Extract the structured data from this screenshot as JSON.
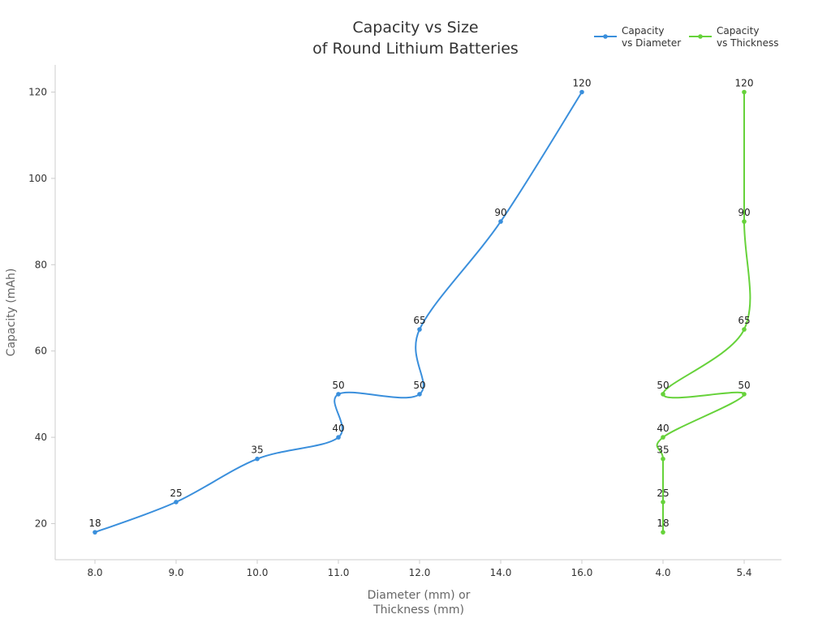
{
  "chart_data": {
    "type": "line",
    "title": [
      "Capacity vs Size",
      "of Round Lithium Batteries"
    ],
    "xlabel": [
      "Diameter (mm) or",
      "Thickness (mm)"
    ],
    "ylabel": "Capacity (mAh)",
    "categories": [
      "8.0",
      "9.0",
      "10.0",
      "11.0",
      "12.0",
      "14.0",
      "16.0",
      "4.0",
      "5.4"
    ],
    "ylim": [
      12,
      126
    ],
    "yticks": [
      20,
      40,
      60,
      80,
      100,
      120
    ],
    "grid": false,
    "legend_position": "top-right",
    "series": [
      {
        "name": [
          "Capacity",
          "vs Diameter"
        ],
        "color": "#3a8fdc",
        "points": [
          {
            "x": "8.0",
            "y": 18
          },
          {
            "x": "9.0",
            "y": 25
          },
          {
            "x": "10.0",
            "y": 35
          },
          {
            "x": "11.0",
            "y": 40
          },
          {
            "x": "11.0",
            "y": 50
          },
          {
            "x": "12.0",
            "y": 50
          },
          {
            "x": "12.0",
            "y": 65
          },
          {
            "x": "14.0",
            "y": 90
          },
          {
            "x": "16.0",
            "y": 120
          }
        ]
      },
      {
        "name": [
          "Capacity",
          "vs Thickness"
        ],
        "color": "#66d23a",
        "points": [
          {
            "x": "4.0",
            "y": 18
          },
          {
            "x": "4.0",
            "y": 25
          },
          {
            "x": "4.0",
            "y": 35
          },
          {
            "x": "4.0",
            "y": 40
          },
          {
            "x": "5.4",
            "y": 50
          },
          {
            "x": "4.0",
            "y": 50
          },
          {
            "x": "5.4",
            "y": 65
          },
          {
            "x": "5.4",
            "y": 90
          },
          {
            "x": "5.4",
            "y": 120
          }
        ]
      }
    ]
  }
}
